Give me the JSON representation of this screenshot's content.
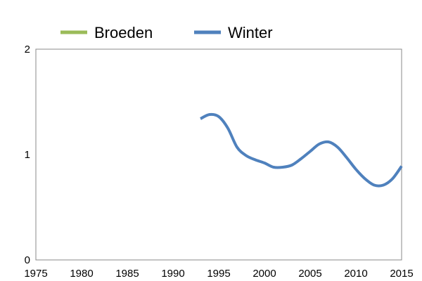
{
  "chart_data": {
    "type": "line",
    "title": "",
    "xlabel": "",
    "ylabel": "",
    "xlim": [
      1975,
      2015
    ],
    "ylim": [
      0,
      2
    ],
    "x_ticks": [
      "1975",
      "1980",
      "1985",
      "1990",
      "1995",
      "2000",
      "2005",
      "2010",
      "2015"
    ],
    "y_ticks": [
      "0",
      "1",
      "2"
    ],
    "grid": false,
    "legend_position": "top",
    "series": [
      {
        "name": "Broeden",
        "color": "#9bbb59",
        "x": [],
        "y": []
      },
      {
        "name": "Winter",
        "color": "#4f81bd",
        "x": [
          1993,
          1994,
          1995,
          1996,
          1997,
          1998,
          1999,
          2000,
          2001,
          2002,
          2003,
          2004,
          2005,
          2006,
          2007,
          2008,
          2009,
          2010,
          2011,
          2012,
          2013,
          2014,
          2015
        ],
        "y": [
          1.34,
          1.38,
          1.36,
          1.25,
          1.07,
          0.99,
          0.95,
          0.92,
          0.88,
          0.88,
          0.9,
          0.96,
          1.03,
          1.1,
          1.12,
          1.07,
          0.97,
          0.86,
          0.77,
          0.71,
          0.71,
          0.77,
          0.89
        ]
      }
    ]
  }
}
